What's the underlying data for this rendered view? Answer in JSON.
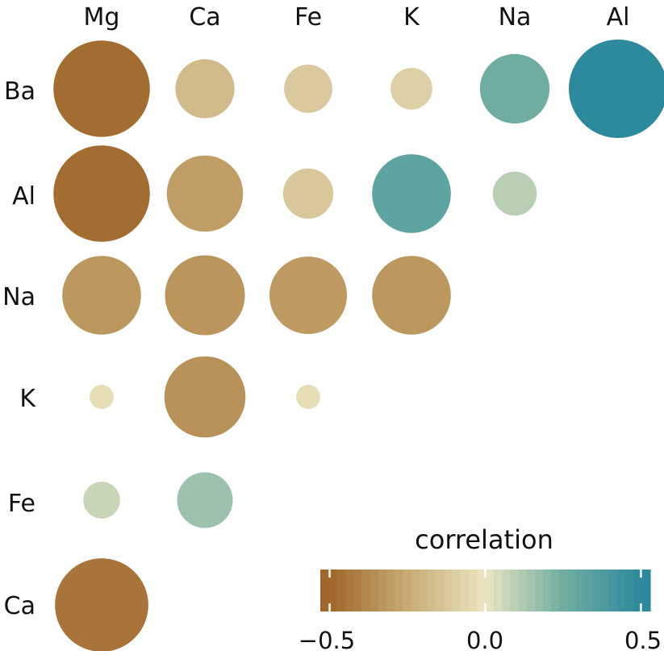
{
  "chart_data": {
    "type": "heatmap",
    "x_labels": [
      "Mg",
      "Ca",
      "Fe",
      "K",
      "Na",
      "Al"
    ],
    "y_labels": [
      "Ba",
      "Al",
      "Na",
      "K",
      "Fe",
      "Ca"
    ],
    "values": [
      [
        -0.48,
        -0.18,
        -0.12,
        -0.09,
        0.25,
        0.5
      ],
      [
        -0.48,
        -0.3,
        -0.13,
        0.32,
        0.1,
        null
      ],
      [
        -0.32,
        -0.33,
        -0.31,
        -0.32,
        null,
        null
      ],
      [
        -0.03,
        -0.34,
        -0.03,
        null,
        null,
        null
      ],
      [
        0.07,
        0.16,
        null,
        null,
        null,
        null
      ],
      [
        -0.45,
        null,
        null,
        null,
        null,
        null
      ]
    ],
    "legend": {
      "title": "correlation",
      "ticks": [
        "−0.5",
        "0.0",
        "0.5"
      ],
      "tick_values": [
        -0.5,
        0.0,
        0.5
      ],
      "range": [
        -0.53,
        0.53
      ]
    },
    "colors": {
      "neg": "#a0662a",
      "neg_mid": "#c7ab74",
      "zero": "#ebe5c1",
      "pos_mid": "#6fada1",
      "pos": "#2d899c"
    }
  }
}
